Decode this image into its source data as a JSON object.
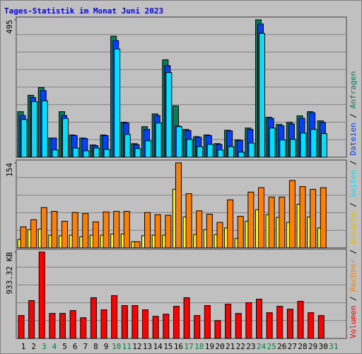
{
  "chart_data": {
    "type": "bar",
    "title": "Tages-Statistik im Monat Juni 2023",
    "categories": [
      "1",
      "2",
      "3",
      "4",
      "5",
      "6",
      "7",
      "8",
      "9",
      "10",
      "11",
      "12",
      "13",
      "14",
      "15",
      "16",
      "17",
      "18",
      "19",
      "20",
      "21",
      "22",
      "23",
      "24",
      "25",
      "26",
      "27",
      "28",
      "29",
      "30",
      "31"
    ],
    "category_colors": [
      "#000000",
      "#000000",
      "#008040",
      "#008040",
      "#000000",
      "#000000",
      "#000000",
      "#000000",
      "#000000",
      "#008040",
      "#008040",
      "#000000",
      "#000000",
      "#000000",
      "#000000",
      "#000000",
      "#008040",
      "#008040",
      "#000000",
      "#000000",
      "#000000",
      "#000000",
      "#000000",
      "#008040",
      "#008040",
      "#000000",
      "#000000",
      "#000000",
      "#000000",
      "#000000",
      "#008040"
    ],
    "legend_separator": " / ",
    "panels": [
      {
        "ylim": [
          0,
          495
        ],
        "yticks": [
          495
        ],
        "series": [
          {
            "name": "Anfragen",
            "color": "#00805c",
            "values": [
              164,
              223,
              251,
              69,
              164,
              80,
              69,
              44,
              80,
              436,
              126,
              49,
              110,
              156,
              351,
              185,
              100,
              74,
              80,
              49,
              97,
              62,
              105,
              495,
              144,
              118,
              126,
              149,
              164,
              131,
              null
            ]
          },
          {
            "name": "Dateien",
            "color": "#0040ff",
            "values": [
              150,
              215,
              240,
              69,
              150,
              78,
              67,
              42,
              78,
              420,
              123,
              45,
              100,
              150,
              330,
              112,
              96,
              72,
              78,
              46,
              95,
              60,
              100,
              480,
              140,
              113,
              120,
              140,
              160,
              125,
              null
            ]
          },
          {
            "name": "Seiten",
            "color": "#00e0ff",
            "values": [
              136,
              200,
              203,
              26,
              139,
              33,
              23,
              33,
              28,
              390,
              82,
              31,
              59,
              123,
              305,
              110,
              64,
              38,
              46,
              26,
              38,
              18,
              51,
              446,
              105,
              62,
              64,
              87,
              100,
              85,
              null
            ]
          }
        ]
      },
      {
        "ylim": [
          0,
          154
        ],
        "yticks": [
          154
        ],
        "series": [
          {
            "name": "Besuche",
            "color": "#ffff00",
            "values": [
              15,
              33,
              34,
              23,
              22,
              23,
              20,
              23,
              23,
              25,
              25,
              11,
              22,
              23,
              23,
              106,
              56,
              24,
              33,
              24,
              36,
              17,
              48,
              69,
              60,
              55,
              46,
              79,
              56,
              36,
              null
            ]
          },
          {
            "name": "Rechner",
            "color": "#ff8000",
            "values": [
              38,
              51,
              73,
              66,
              48,
              64,
              62,
              47,
              65,
              66,
              66,
              11,
              64,
              60,
              59,
              154,
              98,
              67,
              61,
              46,
              87,
              57,
              101,
              109,
              92,
              92,
              122,
              111,
              106,
              109,
              null
            ]
          }
        ]
      },
      {
        "ylim": [
          0,
          933.32
        ],
        "yticks": [
          {
            "value": 933.32,
            "label": "933.32 KB"
          }
        ],
        "series": [
          {
            "name": "Volumen",
            "color": "#ff0000",
            "values": [
              247,
              409,
              933.32,
              270,
              270,
              301,
              224,
              440,
              309,
              463,
              355,
              355,
              309,
              239,
              262,
              347,
              440,
              247,
              355,
              193,
              370,
              270,
              386,
              424,
              278,
              347,
              316,
              401,
              278,
              247,
              null
            ]
          }
        ]
      }
    ]
  }
}
